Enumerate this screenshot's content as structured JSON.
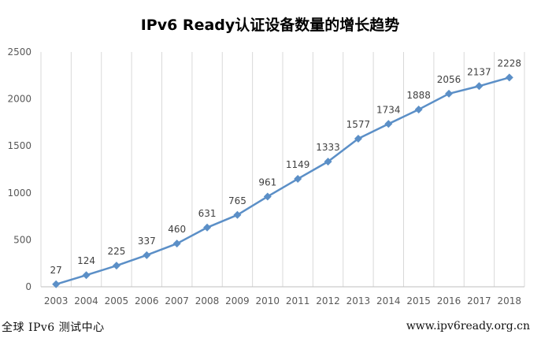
{
  "chart_data": {
    "type": "line",
    "title": "IPv6 Ready认证设备数量的增长趋势",
    "categories": [
      "2003",
      "2004",
      "2005",
      "2006",
      "2007",
      "2008",
      "2009",
      "2010",
      "2011",
      "2012",
      "2013",
      "2014",
      "2015",
      "2016",
      "2017",
      "2018"
    ],
    "series": [
      {
        "values": [
          27,
          124,
          225,
          337,
          460,
          631,
          765,
          961,
          1149,
          1333,
          1577,
          1734,
          1888,
          2056,
          2137,
          2228
        ]
      }
    ],
    "ylim": [
      0,
      2500
    ],
    "yticks": [
      0,
      500,
      1000,
      1500,
      2000,
      2500
    ],
    "grid": "vertical",
    "data_labels": true,
    "legend": "none",
    "colors": {
      "line": "#5b8fc7",
      "marker": "#5b8fc7",
      "grid": "#d9d9d9",
      "axis_text": "#595959",
      "label_text": "#404040"
    }
  },
  "footer": {
    "left": "全球 IPv6 测试中心",
    "right": "www.ipv6ready.org.cn"
  }
}
